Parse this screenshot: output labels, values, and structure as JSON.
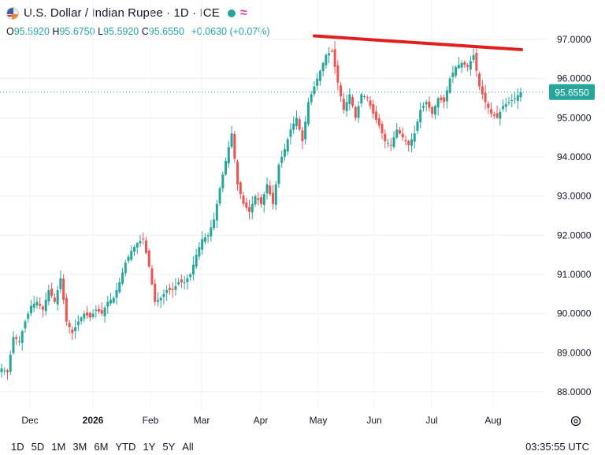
{
  "header": {
    "title": "U.S. Dollar / Indian Rupee · 1D · ICE",
    "flag_icon": "usd-inr-flag-icon",
    "market_status_icon": "market-open-dot-icon",
    "approx_icon": "≈",
    "ohlc": {
      "o_label": "O",
      "o": "95.5920",
      "h_label": "H",
      "h": "95.6750",
      "l_label": "L",
      "l": "95.5920",
      "c_label": "C",
      "c": "95.6550",
      "change": "+0.0630 (+0.07%)"
    }
  },
  "colors": {
    "up": "#26a69a",
    "down": "#ef5350",
    "trendline": "#e0201e",
    "grid": "#f0f3fa"
  },
  "footer": {
    "ranges": [
      "1D",
      "5D",
      "1M",
      "3M",
      "6M",
      "YTD",
      "1Y",
      "5Y",
      "All"
    ],
    "time": "03:35:55 UTC",
    "settings_icon": "chart-settings-icon"
  },
  "chart_data": {
    "type": "candlestick",
    "title": "U.S. Dollar / Indian Rupee",
    "x_tick_labels": [
      "Dec",
      "2026",
      "Feb",
      "Mar",
      "Apr",
      "May",
      "Jun",
      "Jul",
      "Aug"
    ],
    "y_tick_labels": [
      "97.0000",
      "96.0000",
      "95.0000",
      "94.0000",
      "93.0000",
      "92.0000",
      "91.0000",
      "90.0000",
      "89.0000",
      "88.0000"
    ],
    "ylim": [
      87.5,
      97.6
    ],
    "last_price_label": "95.6550",
    "last_price": 95.655,
    "trendline": {
      "from": [
        "~Apr 28",
        97.15
      ],
      "to": [
        "~Aug 16",
        96.8
      ]
    },
    "anchors": [
      [
        "n-start",
        88.6
      ],
      [
        "n-a",
        88.5
      ],
      [
        "n-b",
        89.4
      ],
      [
        "n-c",
        89.3
      ],
      [
        "dec-1",
        89.8
      ],
      [
        "dec-2",
        90.2
      ],
      [
        "dec-3",
        90.3
      ],
      [
        "dec-4",
        90.1
      ],
      [
        "dec-5",
        90.6
      ],
      [
        "dec-6",
        90.3
      ],
      [
        "dec-7",
        90.9
      ],
      [
        "dec-8",
        89.8
      ],
      [
        "dec-9",
        89.5
      ],
      [
        "dec-10",
        89.8
      ],
      [
        "dec-11",
        90.0
      ],
      [
        "2026-a",
        89.9
      ],
      [
        "2026-b",
        90.1
      ],
      [
        "2026-c",
        90.0
      ],
      [
        "jan-1",
        90.3
      ],
      [
        "jan-2",
        90.4
      ],
      [
        "jan-3",
        90.8
      ],
      [
        "jan-4",
        91.3
      ],
      [
        "jan-5",
        91.6
      ],
      [
        "jan-6",
        91.8
      ],
      [
        "jan-7",
        91.9
      ],
      [
        "jan-8",
        91.2
      ],
      [
        "feb-a",
        90.3
      ],
      [
        "feb-b",
        90.4
      ],
      [
        "feb-c",
        90.6
      ],
      [
        "feb-d",
        90.6
      ],
      [
        "feb-e",
        90.8
      ],
      [
        "feb-f",
        90.8
      ],
      [
        "mar-a",
        91.0
      ],
      [
        "mar-b",
        91.5
      ],
      [
        "mar-c",
        91.9
      ],
      [
        "mar-d",
        92.0
      ],
      [
        "mar-e",
        92.4
      ],
      [
        "mar-f",
        93.2
      ],
      [
        "mar-g",
        93.9
      ],
      [
        "apr-a",
        94.6
      ],
      [
        "apr-b",
        93.3
      ],
      [
        "apr-c",
        92.8
      ],
      [
        "apr-d",
        92.6
      ],
      [
        "apr-e",
        93.0
      ],
      [
        "apr-f",
        92.8
      ],
      [
        "apr-g",
        93.3
      ],
      [
        "apr-h",
        92.8
      ],
      [
        "apr-i",
        93.8
      ],
      [
        "apr-j",
        94.2
      ],
      [
        "may-a",
        94.7
      ],
      [
        "may-b",
        95.0
      ],
      [
        "may-c",
        94.4
      ],
      [
        "may-d",
        95.4
      ],
      [
        "may-e",
        95.8
      ],
      [
        "may-f",
        96.2
      ],
      [
        "may-g",
        96.6
      ],
      [
        "may-h",
        96.7
      ],
      [
        "jun-a",
        95.9
      ],
      [
        "jun-b",
        95.2
      ],
      [
        "jun-c",
        95.6
      ],
      [
        "jun-d",
        95.0
      ],
      [
        "jun-e",
        95.6
      ],
      [
        "jun-f",
        95.5
      ],
      [
        "jun-g",
        95.1
      ],
      [
        "jun-h",
        94.8
      ],
      [
        "jun-i",
        94.4
      ],
      [
        "jun-j",
        94.3
      ],
      [
        "jun-k",
        94.7
      ],
      [
        "jun-l",
        94.5
      ],
      [
        "jun-m",
        94.3
      ],
      [
        "jul-a",
        94.6
      ],
      [
        "jul-b",
        95.2
      ],
      [
        "jul-c",
        95.4
      ],
      [
        "jul-d",
        95.1
      ],
      [
        "jul-e",
        95.5
      ],
      [
        "jul-f",
        95.4
      ],
      [
        "jul-g",
        96.0
      ],
      [
        "jul-h",
        96.3
      ],
      [
        "jul-i",
        96.4
      ],
      [
        "jul-j",
        96.3
      ],
      [
        "jul-k",
        96.6
      ],
      [
        "aug-a",
        95.8
      ],
      [
        "aug-b",
        95.4
      ],
      [
        "aug-c",
        95.1
      ],
      [
        "aug-d",
        95.0
      ],
      [
        "aug-e",
        95.3
      ],
      [
        "aug-f",
        95.4
      ],
      [
        "aug-g",
        95.5
      ],
      [
        "aug-h",
        95.655
      ]
    ]
  }
}
